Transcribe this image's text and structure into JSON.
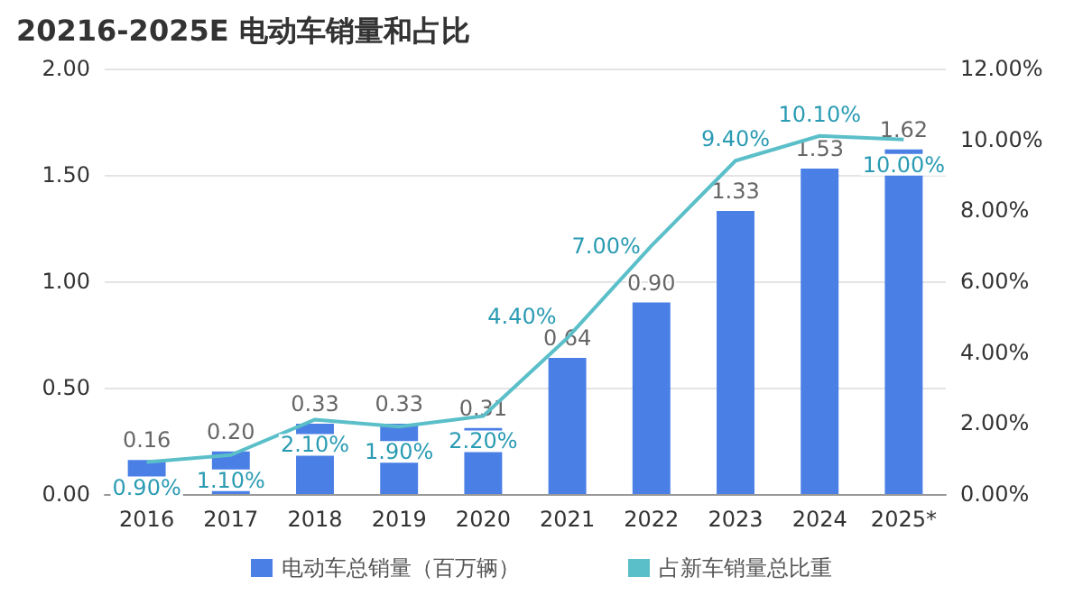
{
  "chart_data": {
    "type": "bar",
    "title": "20216-2025E 电动车销量和占比",
    "categories": [
      "2016",
      "2017",
      "2018",
      "2019",
      "2020",
      "2021",
      "2022",
      "2023",
      "2024",
      "2025*"
    ],
    "series": [
      {
        "name": "电动车总销量（百万辆）",
        "color": "#4a7fe6",
        "values": [
          0.16,
          0.2,
          0.33,
          0.33,
          0.31,
          0.64,
          0.9,
          1.33,
          1.53,
          1.62
        ],
        "value_labels": [
          "0.16",
          "0.20",
          "0.33",
          "0.33",
          "0.31",
          "0.64",
          "0.90",
          "1.33",
          "1.53",
          "1.62"
        ]
      },
      {
        "name": "占新车销量总比重",
        "type": "line",
        "axis": "y2",
        "color": "#5bbfc9",
        "values": [
          0.9,
          1.1,
          2.1,
          1.9,
          2.2,
          4.4,
          7.0,
          9.4,
          10.1,
          10.0
        ],
        "value_labels": [
          "0.90%",
          "1.10%",
          "2.10%",
          "1.90%",
          "2.20%",
          "4.40%",
          "7.00%",
          "9.40%",
          "10.10%",
          "10.00%"
        ]
      }
    ],
    "ylim": [
      0,
      2
    ],
    "yticks": [
      {
        "value": 0,
        "label": "0.00"
      },
      {
        "value": 0.5,
        "label": "0.50"
      },
      {
        "value": 1,
        "label": "1.00"
      },
      {
        "value": 1.5,
        "label": "1.50"
      },
      {
        "value": 2,
        "label": "2.00"
      }
    ],
    "y2lim": [
      0,
      12
    ],
    "y2ticks": [
      {
        "value": 0,
        "label": "0.00%"
      },
      {
        "value": 2,
        "label": "2.00%"
      },
      {
        "value": 4,
        "label": "4.00%"
      },
      {
        "value": 6,
        "label": "6.00%"
      },
      {
        "value": 8,
        "label": "8.00%"
      },
      {
        "value": 10,
        "label": "10.00%"
      },
      {
        "value": 12,
        "label": "12.00%"
      }
    ],
    "grid": "y",
    "legend": "bottom",
    "marker": "none",
    "line_style": "solid"
  }
}
